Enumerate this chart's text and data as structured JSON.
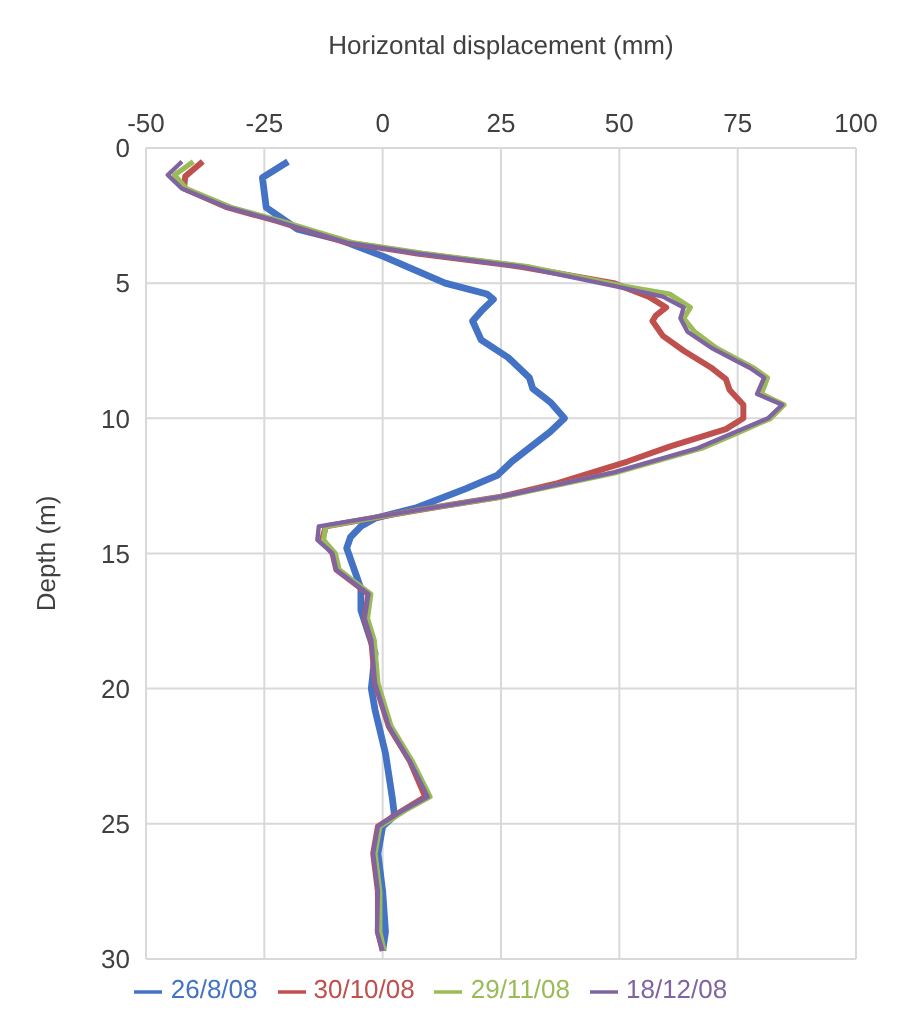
{
  "chart_data": {
    "type": "line",
    "xlabel": "Horizontal displacement (mm)",
    "ylabel": "Depth (m)",
    "xlim": [
      -50,
      100
    ],
    "xticks": [
      -50,
      -25,
      0,
      25,
      50,
      75,
      100
    ],
    "ylim": [
      30,
      0
    ],
    "yticks": [
      0,
      5,
      10,
      15,
      20,
      25,
      30
    ],
    "grid": true,
    "legend": "bottom",
    "marker": "none",
    "line_style": "solid",
    "series": [
      {
        "name": "26/8/08",
        "color": "#4472c4",
        "x": [
          -20,
          -25.4,
          -24.6,
          -18,
          -9,
          0,
          13.2,
          22,
          23.4,
          21,
          19,
          20.8,
          26.5,
          31,
          31.7,
          35.4,
          38.4,
          35.4,
          27.3,
          24.3,
          17.6,
          7.3,
          -1.6,
          -4.6,
          -6.8,
          -7.6,
          -6,
          -4.6,
          -4.6,
          -1.6,
          -2.4,
          -1.6,
          0.6,
          2,
          2.5,
          0,
          -1,
          0,
          0.6,
          0
        ],
        "values": [
          0.5,
          1.1,
          2.2,
          3,
          3.4,
          4,
          5,
          5.4,
          5.6,
          6,
          6.4,
          7.1,
          7.75,
          8.5,
          8.9,
          9.4,
          10,
          10.5,
          11.6,
          12.1,
          12.6,
          13.3,
          13.7,
          14,
          14.4,
          14.8,
          15.6,
          16.3,
          17.1,
          18.7,
          20,
          20.8,
          22.4,
          24,
          24.7,
          25.1,
          26.1,
          27.5,
          29,
          29.7
        ]
      },
      {
        "name": "30/10/08",
        "color": "#c0504d",
        "x": [
          -38,
          -41.7,
          -42,
          -32.8,
          -22.4,
          -7.6,
          7.3,
          29.5,
          48.8,
          56.2,
          59.9,
          57.7,
          57,
          59.2,
          63.6,
          69.6,
          72.5,
          73.3,
          76.2,
          76.2,
          72.5,
          60.6,
          51.7,
          37,
          25,
          7.3,
          -12,
          -12.8,
          -10.6,
          -9.8,
          -6.8,
          -3,
          -3.8,
          -2.4,
          -1.6,
          1.3,
          5.8,
          9,
          4.3,
          -1,
          -2,
          -1,
          -1,
          0
        ],
        "values": [
          0.5,
          1.05,
          1.5,
          2.2,
          2.7,
          3.5,
          3.9,
          4.4,
          5,
          5.5,
          5.9,
          6.2,
          6.4,
          6.95,
          7.5,
          8.15,
          8.55,
          8.95,
          9.5,
          10,
          10.4,
          11.05,
          11.6,
          12.4,
          12.9,
          13.4,
          14,
          14.5,
          15,
          15.6,
          16,
          16.5,
          17.4,
          18.2,
          19.8,
          21.4,
          22.7,
          24,
          24.5,
          25.1,
          26.1,
          27.5,
          29,
          29.7
        ]
      },
      {
        "name": "29/11/08",
        "color": "#9bbb59",
        "x": [
          -40,
          -44,
          -41.5,
          -32,
          -21.5,
          -6.5,
          8.5,
          31,
          50.5,
          60.6,
          65,
          63.6,
          65.9,
          70.5,
          78.5,
          81.3,
          80,
          84.8,
          82,
          75.5,
          67.5,
          49.5,
          25.5,
          7.3,
          -12,
          -12.5,
          -10,
          -9.2,
          -6.3,
          -2.5,
          -3.2,
          -1.8,
          -1,
          1.8,
          6.3,
          10,
          4.8,
          -0.6,
          -1.6,
          -0.6,
          -0.6,
          0.3
        ],
        "values": [
          0.5,
          1,
          1.5,
          2.2,
          2.7,
          3.5,
          3.9,
          4.4,
          5.1,
          5.4,
          5.9,
          6.3,
          6.8,
          7.4,
          8.15,
          8.5,
          9.1,
          9.5,
          10,
          10.5,
          11.1,
          12,
          12.9,
          13.4,
          14,
          14.5,
          15,
          15.6,
          16,
          16.5,
          17.4,
          18.2,
          19.8,
          21.4,
          22.7,
          24,
          24.5,
          25.1,
          26.1,
          27.5,
          29,
          29.7
        ]
      },
      {
        "name": "18/12/08",
        "color": "#8064a2",
        "x": [
          -42.4,
          -45.4,
          -42.4,
          -32.8,
          -22.4,
          -7.6,
          7.3,
          29.5,
          48.8,
          59.2,
          63.6,
          62.9,
          64.4,
          69.5,
          77.7,
          80.6,
          79.1,
          84.4,
          81.4,
          66.6,
          48.8,
          25,
          7.3,
          -13.5,
          -13.8,
          -10.6,
          -9.8,
          -6.8,
          -3,
          -3.8,
          -2.4,
          -1.6,
          1.3,
          5.8,
          9.5,
          4.3,
          -1,
          -2,
          -1,
          -1.2,
          0
        ],
        "values": [
          0.5,
          1,
          1.5,
          2.2,
          2.7,
          3.5,
          3.9,
          4.4,
          5.1,
          5.5,
          5.9,
          6.3,
          6.8,
          7.4,
          8.15,
          8.5,
          9.1,
          9.5,
          10,
          11.1,
          12,
          12.9,
          13.4,
          14,
          14.5,
          15,
          15.6,
          16,
          16.5,
          17.4,
          18.2,
          19.8,
          21.4,
          22.7,
          24,
          24.5,
          25.1,
          26.1,
          27.5,
          29,
          29.7
        ]
      }
    ]
  }
}
